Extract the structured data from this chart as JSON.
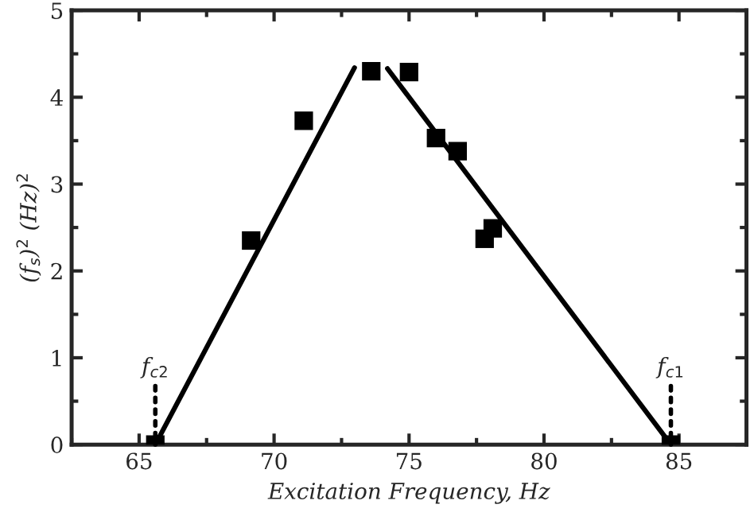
{
  "chart_data": {
    "type": "scatter",
    "xlabel": "Excitation Frequency, Hz",
    "ylabel": "(f$_{s}$)$^{2}$ (Hz)$^{2}$",
    "series": [
      {
        "color": "#000000",
        "marker": "square",
        "x": [
          65.6,
          69.15,
          71.1,
          73.6,
          75.0,
          76.0,
          76.8,
          77.8,
          78.1,
          84.7
        ],
        "values": [
          0,
          2.35,
          3.73,
          4.3,
          4.29,
          3.53,
          3.38,
          2.37,
          2.49,
          0
        ]
      },
      {
        "type": "line",
        "color": "#000000",
        "line_style": "solid",
        "x": [
          65.6,
          72.98
        ],
        "values": [
          0,
          4.34
        ]
      },
      {
        "type": "line",
        "color": "#000000",
        "line_style": "solid",
        "x": [
          74.2,
          84.7
        ],
        "values": [
          4.33,
          0
        ]
      }
    ],
    "annotations": [
      {
        "text": "f$_{c2}$",
        "x": 65.6,
        "y": 0
      },
      {
        "text": "f$_{c1}$",
        "x": 84.7,
        "y": 0
      }
    ],
    "xlim": [
      62.5,
      87.5
    ],
    "xticks": [
      65,
      70,
      75,
      80,
      85
    ],
    "ylim": [
      0,
      5
    ],
    "yticks": [
      0,
      1,
      2,
      3,
      4,
      5
    ],
    "grid": false,
    "legend": false
  }
}
